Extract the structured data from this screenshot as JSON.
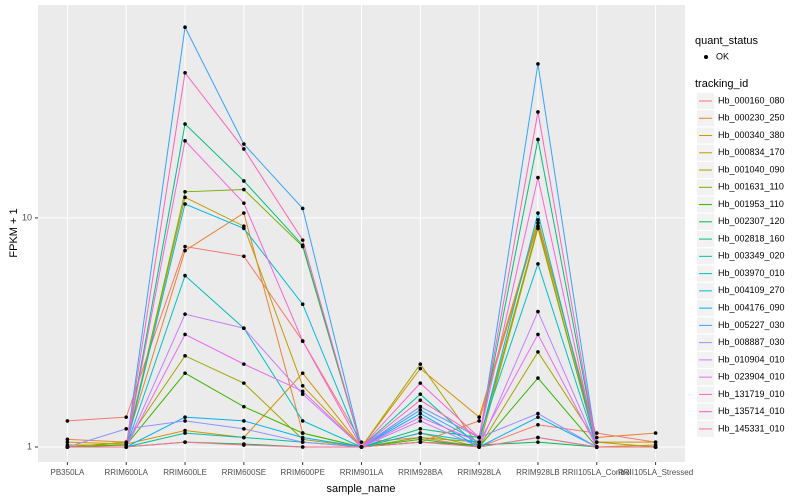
{
  "chart_data": {
    "type": "line",
    "x_label": "sample_name",
    "y_label": "FPKM + 1",
    "categories": [
      "PB350LA",
      "RRIM600LA",
      "RRIM600LE",
      "RRIM600SE",
      "RRIM600PE",
      "RRIM901LA",
      "RRIM928BA",
      "RRIM928LA",
      "RRIM928LB",
      "RRII105LA_Control",
      "RRII105LA_Stressed"
    ],
    "log_y": true,
    "ylim": [
      0.86,
      85
    ],
    "yticks": [
      1,
      10
    ],
    "grid": true,
    "points": true,
    "point_legend_title": "quant_status",
    "point_legend_label": "OK",
    "legend_title": "tracking_id",
    "legend_position": "right",
    "series": [
      {
        "name": "Hb_000160_080",
        "color": "#F8766D",
        "values": [
          1.3,
          1.35,
          7.5,
          6.8,
          2.9,
          1.05,
          1.1,
          1.0,
          1.25,
          1.15,
          1.05
        ]
      },
      {
        "name": "Hb_000230_250",
        "color": "#EA8331",
        "values": [
          1.08,
          1.05,
          7.2,
          10.5,
          1.15,
          1.0,
          1.05,
          1.3,
          9.5,
          1.1,
          1.15
        ]
      },
      {
        "name": "Hb_000340_380",
        "color": "#D89000",
        "values": [
          1.05,
          1.03,
          1.18,
          1.1,
          2.1,
          1.0,
          2.2,
          1.35,
          9.8,
          1.05,
          1.05
        ]
      },
      {
        "name": "Hb_000834_170",
        "color": "#C09B00",
        "values": [
          1.02,
          1.02,
          12.3,
          9.2,
          1.85,
          1.0,
          1.15,
          1.0,
          9.0,
          1.0,
          1.02
        ]
      },
      {
        "name": "Hb_001040_090",
        "color": "#A3A500",
        "values": [
          1.0,
          1.05,
          2.5,
          1.9,
          1.08,
          1.0,
          2.3,
          1.0,
          2.6,
          1.05,
          1.0
        ]
      },
      {
        "name": "Hb_001631_110",
        "color": "#7CAE00",
        "values": [
          1.0,
          1.0,
          13.0,
          13.3,
          7.5,
          1.0,
          1.1,
          1.05,
          9.2,
          1.0,
          1.0
        ]
      },
      {
        "name": "Hb_001953_110",
        "color": "#39B600",
        "values": [
          1.0,
          1.02,
          2.1,
          1.5,
          1.15,
          1.0,
          1.08,
          1.0,
          2.0,
          1.0,
          1.0
        ]
      },
      {
        "name": "Hb_002307_120",
        "color": "#00BB4E",
        "values": [
          1.0,
          1.0,
          1.05,
          1.03,
          1.0,
          1.0,
          1.05,
          1.02,
          1.05,
          1.0,
          1.0
        ]
      },
      {
        "name": "Hb_002818_160",
        "color": "#00BF7D",
        "values": [
          1.0,
          1.0,
          25.7,
          14.5,
          7.6,
          1.0,
          1.2,
          1.1,
          22.0,
          1.0,
          1.0
        ]
      },
      {
        "name": "Hb_003349_020",
        "color": "#00C1A3",
        "values": [
          1.0,
          1.0,
          1.15,
          1.1,
          1.05,
          1.0,
          1.7,
          1.0,
          1.1,
          1.0,
          1.0
        ]
      },
      {
        "name": "Hb_003970_010",
        "color": "#00BFC4",
        "values": [
          1.0,
          1.0,
          5.6,
          3.3,
          1.3,
          1.0,
          1.5,
          1.1,
          6.3,
          1.0,
          1.0
        ]
      },
      {
        "name": "Hb_004109_270",
        "color": "#00BAE0",
        "values": [
          1.0,
          1.0,
          11.5,
          9.0,
          4.2,
          1.0,
          1.15,
          1.05,
          10.5,
          1.0,
          1.0
        ]
      },
      {
        "name": "Hb_004176_090",
        "color": "#00B0F6",
        "values": [
          1.0,
          1.0,
          1.35,
          1.3,
          1.1,
          1.0,
          1.4,
          1.0,
          1.35,
          1.0,
          1.0
        ]
      },
      {
        "name": "Hb_005227_030",
        "color": "#35A2FF",
        "values": [
          1.0,
          1.0,
          68,
          21,
          11,
          1.0,
          1.45,
          1.05,
          47,
          1.0,
          1.0
        ]
      },
      {
        "name": "Hb_008887_030",
        "color": "#9590FF",
        "values": [
          1.0,
          1.2,
          1.3,
          1.2,
          1.05,
          1.0,
          1.5,
          1.1,
          1.4,
          1.0,
          1.0
        ]
      },
      {
        "name": "Hb_010904_010",
        "color": "#C77CFF",
        "values": [
          1.0,
          1.0,
          3.8,
          3.3,
          1.7,
          1.0,
          1.3,
          1.0,
          3.9,
          1.0,
          1.0
        ]
      },
      {
        "name": "Hb_023904_010",
        "color": "#E76BF3",
        "values": [
          1.0,
          1.0,
          3.1,
          2.3,
          1.75,
          1.0,
          1.35,
          1.05,
          3.1,
          1.0,
          1.0
        ]
      },
      {
        "name": "Hb_131719_010",
        "color": "#FA62DB",
        "values": [
          1.0,
          1.0,
          21.7,
          11.6,
          2.9,
          1.0,
          1.9,
          1.1,
          15,
          1.0,
          1.0
        ]
      },
      {
        "name": "Hb_135714_010",
        "color": "#FF62BC",
        "values": [
          1.0,
          1.0,
          43,
          20,
          8,
          1.0,
          1.6,
          1.1,
          29,
          1.0,
          1.0
        ]
      },
      {
        "name": "Hb_145331_010",
        "color": "#FF6C91",
        "values": [
          1.0,
          1.0,
          1.05,
          1.02,
          1.0,
          1.0,
          1.05,
          1.0,
          1.1,
          1.0,
          1.0
        ]
      }
    ]
  }
}
